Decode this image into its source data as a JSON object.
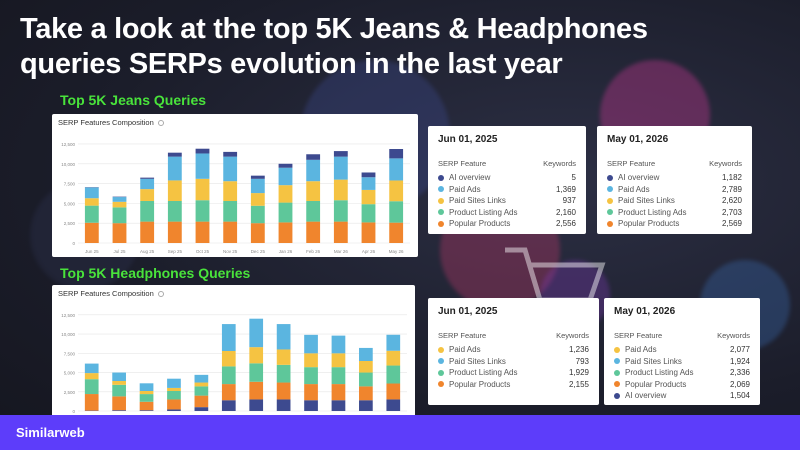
{
  "title_line1": "Take a look at the top 5K Jeans & Headphones",
  "title_line2": "queries SERPs evolution in the last year",
  "brand": "Similarweb",
  "colors": {
    "popular_products": "#f0852d",
    "product_listing_ads": "#5ec79a",
    "paid_sites_links": "#f5c342",
    "paid_ads": "#5bb5e0",
    "ai_overview": "#3d4a8f",
    "accent_green": "#49e33b",
    "footer": "#5d3dfa"
  },
  "jeans": {
    "label": "Top 5K Jeans Queries",
    "chart_title": "SERP Features Composition",
    "chart_data": {
      "type": "bar",
      "stacked": true,
      "categories": [
        "Jun 25",
        "Jul 25",
        "Aug 25",
        "Sep 25",
        "Oct 25",
        "Nov 25",
        "Dec 25",
        "Jan 26",
        "Feb 26",
        "Mar 26",
        "Apr 26",
        "May 26"
      ],
      "yticks": [
        "0",
        "2,500",
        "5,000",
        "7,500",
        "10,000",
        "12,500"
      ],
      "ylim": [
        0,
        13000
      ],
      "series": [
        {
          "key": "popular_products",
          "values": [
            2556,
            2500,
            2700,
            2700,
            2700,
            2700,
            2500,
            2600,
            2700,
            2700,
            2600,
            2569
          ]
        },
        {
          "key": "product_listing_ads",
          "values": [
            2160,
            2000,
            2600,
            2600,
            2700,
            2600,
            2200,
            2500,
            2600,
            2700,
            2300,
            2703
          ]
        },
        {
          "key": "paid_sites_links",
          "values": [
            937,
            700,
            1500,
            2600,
            2700,
            2500,
            1600,
            2200,
            2500,
            2600,
            1800,
            2620
          ]
        },
        {
          "key": "paid_ads",
          "values": [
            1369,
            600,
            1300,
            3000,
            3200,
            3100,
            1800,
            2200,
            2700,
            2900,
            1600,
            2789
          ]
        },
        {
          "key": "ai_overview",
          "values": [
            5,
            50,
            150,
            500,
            600,
            600,
            400,
            500,
            700,
            700,
            600,
            1182
          ]
        }
      ]
    },
    "table_left": {
      "date": "Jun 01, 2025",
      "col_feature": "SERP Feature",
      "col_keywords": "Keywords",
      "rows": [
        {
          "label": "AI overview",
          "value": "5",
          "color": "ai_overview"
        },
        {
          "label": "Paid Ads",
          "value": "1,369",
          "color": "paid_ads"
        },
        {
          "label": "Paid Sites Links",
          "value": "937",
          "color": "paid_sites_links"
        },
        {
          "label": "Product Listing Ads",
          "value": "2,160",
          "color": "product_listing_ads"
        },
        {
          "label": "Popular Products",
          "value": "2,556",
          "color": "popular_products"
        }
      ]
    },
    "table_right": {
      "date": "May 01, 2026",
      "col_feature": "SERP Feature",
      "col_keywords": "Keywords",
      "rows": [
        {
          "label": "AI overview",
          "value": "1,182",
          "color": "ai_overview"
        },
        {
          "label": "Paid Ads",
          "value": "2,789",
          "color": "paid_ads"
        },
        {
          "label": "Paid Sites Links",
          "value": "2,620",
          "color": "paid_sites_links"
        },
        {
          "label": "Product Listing Ads",
          "value": "2,703",
          "color": "product_listing_ads"
        },
        {
          "label": "Popular Products",
          "value": "2,569",
          "color": "popular_products"
        }
      ]
    }
  },
  "headphones": {
    "label": "Top 5K Headphones Queries",
    "chart_title": "SERP Features Composition",
    "chart_data": {
      "type": "bar",
      "stacked": true,
      "categories": [
        "Jun 25",
        "Jul 25",
        "Aug 25",
        "Sep 25",
        "Oct 25",
        "Nov 25",
        "Dec 25",
        "Jan 26",
        "Feb 26",
        "Mar 26",
        "Apr 26",
        "May 26"
      ],
      "yticks": [
        "0",
        "2,500",
        "5,000",
        "7,500",
        "10,000",
        "12,500"
      ],
      "ylim": [
        0,
        13000
      ],
      "series": [
        {
          "key": "ai_overview",
          "values": [
            50,
            100,
            100,
            200,
            500,
            1400,
            1500,
            1500,
            1400,
            1400,
            1400,
            1504
          ]
        },
        {
          "key": "popular_products",
          "values": [
            2155,
            1800,
            1100,
            1300,
            1500,
            2100,
            2300,
            2200,
            2100,
            2100,
            1800,
            2069
          ]
        },
        {
          "key": "product_listing_ads",
          "values": [
            1929,
            1500,
            1000,
            1100,
            1200,
            2300,
            2400,
            2300,
            2200,
            2200,
            1800,
            2336
          ]
        },
        {
          "key": "paid_sites_links",
          "values": [
            793,
            500,
            400,
            400,
            500,
            2000,
            2100,
            2000,
            1800,
            1800,
            1500,
            1924
          ]
        },
        {
          "key": "paid_ads",
          "values": [
            1236,
            1100,
            1000,
            1200,
            1000,
            3500,
            3700,
            3300,
            2400,
            2300,
            1700,
            2077
          ]
        }
      ]
    },
    "table_left": {
      "date": "Jun 01, 2025",
      "col_feature": "SERP Feature",
      "col_keywords": "Keywords",
      "rows": [
        {
          "label": "Paid Ads",
          "value": "1,236",
          "color": "paid_sites_links"
        },
        {
          "label": "Paid Sites Links",
          "value": "793",
          "color": "paid_ads"
        },
        {
          "label": "Product Listing Ads",
          "value": "1,929",
          "color": "product_listing_ads"
        },
        {
          "label": "Popular Products",
          "value": "2,155",
          "color": "popular_products"
        }
      ]
    },
    "table_right": {
      "date": "May 01, 2026",
      "col_feature": "SERP Feature",
      "col_keywords": "Keywords",
      "rows": [
        {
          "label": "Paid Ads",
          "value": "2,077",
          "color": "paid_sites_links"
        },
        {
          "label": "Paid Sites Links",
          "value": "1,924",
          "color": "paid_ads"
        },
        {
          "label": "Product Listing Ads",
          "value": "2,336",
          "color": "product_listing_ads"
        },
        {
          "label": "Popular Products",
          "value": "2,069",
          "color": "popular_products"
        },
        {
          "label": "AI overview",
          "value": "1,504",
          "color": "ai_overview"
        }
      ]
    }
  }
}
